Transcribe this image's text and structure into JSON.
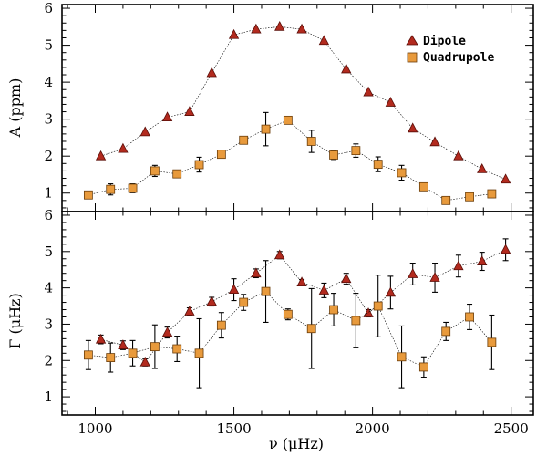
{
  "chart_data": [
    {
      "type": "scatter",
      "panel": "top",
      "ylabel": "A (ppm)",
      "xlim": [
        880,
        2580
      ],
      "ylim": [
        0.5,
        6.1
      ],
      "yticks": [
        1,
        2,
        3,
        4,
        5,
        6
      ],
      "legend_position": "top-right",
      "connected": true,
      "series": [
        {
          "name": "Dipole",
          "marker": "triangle",
          "color": "#b22a1e",
          "points": [
            {
              "x": 1020,
              "y": 2.0
            },
            {
              "x": 1100,
              "y": 2.2
            },
            {
              "x": 1180,
              "y": 2.65
            },
            {
              "x": 1260,
              "y": 3.05
            },
            {
              "x": 1340,
              "y": 3.2
            },
            {
              "x": 1420,
              "y": 4.25
            },
            {
              "x": 1500,
              "y": 5.28
            },
            {
              "x": 1580,
              "y": 5.43
            },
            {
              "x": 1665,
              "y": 5.5
            },
            {
              "x": 1745,
              "y": 5.43
            },
            {
              "x": 1825,
              "y": 5.12
            },
            {
              "x": 1905,
              "y": 4.35
            },
            {
              "x": 1985,
              "y": 3.73
            },
            {
              "x": 2065,
              "y": 3.45
            },
            {
              "x": 2145,
              "y": 2.75
            },
            {
              "x": 2225,
              "y": 2.38
            },
            {
              "x": 2310,
              "y": 2.0
            },
            {
              "x": 2395,
              "y": 1.65
            },
            {
              "x": 2480,
              "y": 1.37
            }
          ]
        },
        {
          "name": "Quadrupole",
          "marker": "square",
          "color": "#e89a3c",
          "points": [
            {
              "x": 975,
              "y": 0.95,
              "err": 0.1
            },
            {
              "x": 1055,
              "y": 1.1,
              "err": 0.15
            },
            {
              "x": 1135,
              "y": 1.13,
              "err": 0.12
            },
            {
              "x": 1215,
              "y": 1.6,
              "err": 0.15
            },
            {
              "x": 1295,
              "y": 1.52,
              "err": 0.08
            },
            {
              "x": 1375,
              "y": 1.77,
              "err": 0.2
            },
            {
              "x": 1455,
              "y": 2.05,
              "err": 0.1
            },
            {
              "x": 1535,
              "y": 2.43,
              "err": 0.08
            },
            {
              "x": 1615,
              "y": 2.73,
              "err": 0.45
            },
            {
              "x": 1695,
              "y": 2.97,
              "err": 0.06
            },
            {
              "x": 1780,
              "y": 2.4,
              "err": 0.3
            },
            {
              "x": 1860,
              "y": 2.03,
              "err": 0.12
            },
            {
              "x": 1940,
              "y": 2.15,
              "err": 0.18
            },
            {
              "x": 2020,
              "y": 1.78,
              "err": 0.2
            },
            {
              "x": 2105,
              "y": 1.55,
              "err": 0.2
            },
            {
              "x": 2185,
              "y": 1.17,
              "err": 0.08
            },
            {
              "x": 2265,
              "y": 0.8,
              "err": 0.05
            },
            {
              "x": 2350,
              "y": 0.9,
              "err": 0.06
            },
            {
              "x": 2430,
              "y": 0.98,
              "err": 0.1
            }
          ]
        }
      ]
    },
    {
      "type": "scatter",
      "panel": "bottom",
      "ylabel": "Γ (μHz)",
      "xlabel": "ν (μHz)",
      "xlim": [
        880,
        2580
      ],
      "ylim": [
        0.5,
        6.1
      ],
      "xticks": [
        1000,
        1500,
        2000,
        2500
      ],
      "yticks": [
        1,
        2,
        3,
        4,
        5,
        6
      ],
      "connected": true,
      "series": [
        {
          "name": "Dipole",
          "marker": "triangle",
          "color": "#b22a1e",
          "points": [
            {
              "x": 1020,
              "y": 2.58,
              "err": 0.12
            },
            {
              "x": 1100,
              "y": 2.42,
              "err": 0.12
            },
            {
              "x": 1180,
              "y": 1.95,
              "err": 0.1
            },
            {
              "x": 1260,
              "y": 2.77,
              "err": 0.15
            },
            {
              "x": 1340,
              "y": 3.35,
              "err": 0.1
            },
            {
              "x": 1420,
              "y": 3.62,
              "err": 0.12
            },
            {
              "x": 1500,
              "y": 3.95,
              "err": 0.3
            },
            {
              "x": 1580,
              "y": 4.4,
              "err": 0.12
            },
            {
              "x": 1665,
              "y": 4.9,
              "err": 0.1
            },
            {
              "x": 1745,
              "y": 4.15,
              "err": 0.08
            },
            {
              "x": 1825,
              "y": 3.93,
              "err": 0.2
            },
            {
              "x": 1905,
              "y": 4.25,
              "err": 0.15
            },
            {
              "x": 1985,
              "y": 3.3,
              "err": 0.1
            },
            {
              "x": 2065,
              "y": 3.87,
              "err": 0.45
            },
            {
              "x": 2145,
              "y": 4.38,
              "err": 0.3
            },
            {
              "x": 2225,
              "y": 4.28,
              "err": 0.4
            },
            {
              "x": 2310,
              "y": 4.6,
              "err": 0.3
            },
            {
              "x": 2395,
              "y": 4.73,
              "err": 0.25
            },
            {
              "x": 2480,
              "y": 5.05,
              "err": 0.3
            }
          ]
        },
        {
          "name": "Quadrupole",
          "marker": "square",
          "color": "#e89a3c",
          "points": [
            {
              "x": 975,
              "y": 2.15,
              "err": 0.4
            },
            {
              "x": 1055,
              "y": 2.08,
              "err": 0.4
            },
            {
              "x": 1135,
              "y": 2.2,
              "err": 0.35
            },
            {
              "x": 1215,
              "y": 2.38,
              "err": 0.6
            },
            {
              "x": 1295,
              "y": 2.32,
              "err": 0.35
            },
            {
              "x": 1375,
              "y": 2.2,
              "err": 0.95
            },
            {
              "x": 1455,
              "y": 2.97,
              "err": 0.35
            },
            {
              "x": 1535,
              "y": 3.6,
              "err": 0.22
            },
            {
              "x": 1615,
              "y": 3.9,
              "err": 0.85
            },
            {
              "x": 1695,
              "y": 3.27,
              "err": 0.15
            },
            {
              "x": 1780,
              "y": 2.88,
              "err": 1.1
            },
            {
              "x": 1860,
              "y": 3.4,
              "err": 0.45
            },
            {
              "x": 1940,
              "y": 3.1,
              "err": 0.75
            },
            {
              "x": 2020,
              "y": 3.5,
              "err": 0.85
            },
            {
              "x": 2105,
              "y": 2.1,
              "err": 0.85
            },
            {
              "x": 2185,
              "y": 1.82,
              "err": 0.28
            },
            {
              "x": 2265,
              "y": 2.8,
              "err": 0.25
            },
            {
              "x": 2350,
              "y": 3.2,
              "err": 0.35
            },
            {
              "x": 2430,
              "y": 2.5,
              "err": 0.75
            }
          ]
        }
      ]
    }
  ]
}
